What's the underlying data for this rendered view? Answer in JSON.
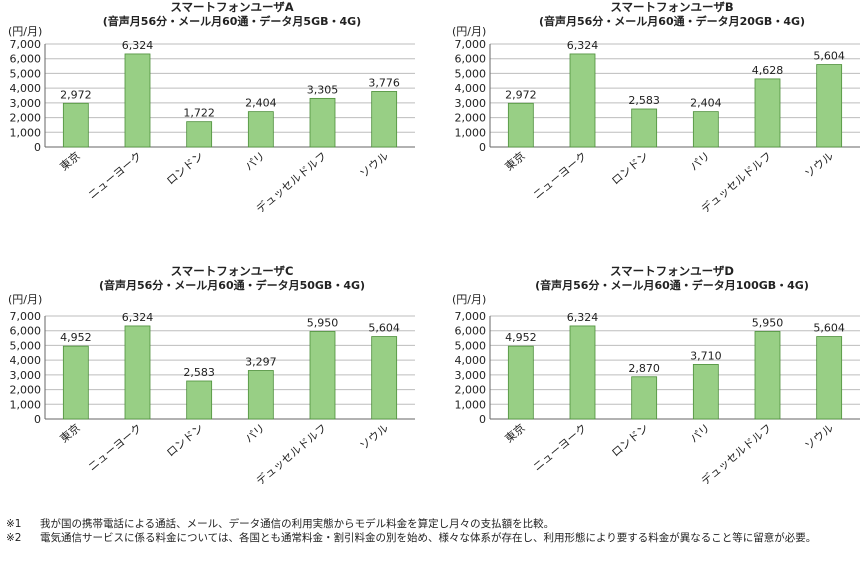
{
  "chart_data": [
    {
      "type": "bar",
      "title": "スマートフォンユーザA",
      "subtitle": "(音声月56分・メール月60通・データ月5GB・4G)",
      "unit_label": "(円/月)",
      "categories": [
        "東京",
        "ニューヨーク",
        "ロンドン",
        "パリ",
        "デュッセルドルフ",
        "ソウル"
      ],
      "values": [
        2972,
        6324,
        1722,
        2404,
        3305,
        3776
      ],
      "value_labels": [
        "2,972",
        "6,324",
        "1,722",
        "2,404",
        "3,305",
        "3,776"
      ],
      "ylim": [
        0,
        7000
      ],
      "yticks": [
        "0",
        "1,000",
        "2,000",
        "3,000",
        "4,000",
        "5,000",
        "6,000",
        "7,000"
      ],
      "grid": true,
      "legend": "none"
    },
    {
      "type": "bar",
      "title": "スマートフォンユーザB",
      "subtitle": "(音声月56分・メール月60通・データ月20GB・4G)",
      "unit_label": "(円/月)",
      "categories": [
        "東京",
        "ニューヨーク",
        "ロンドン",
        "パリ",
        "デュッセルドルフ",
        "ソウル"
      ],
      "values": [
        2972,
        6324,
        2583,
        2404,
        4628,
        5604
      ],
      "value_labels": [
        "2,972",
        "6,324",
        "2,583",
        "2,404",
        "4,628",
        "5,604"
      ],
      "ylim": [
        0,
        7000
      ],
      "yticks": [
        "0",
        "1,000",
        "2,000",
        "3,000",
        "4,000",
        "5,000",
        "6,000",
        "7,000"
      ],
      "grid": true,
      "legend": "none"
    },
    {
      "type": "bar",
      "title": "スマートフォンユーザC",
      "subtitle": "(音声月56分・メール月60通・データ月50GB・4G)",
      "unit_label": "(円/月)",
      "categories": [
        "東京",
        "ニューヨーク",
        "ロンドン",
        "パリ",
        "デュッセルドルフ",
        "ソウル"
      ],
      "values": [
        4952,
        6324,
        2583,
        3297,
        5950,
        5604
      ],
      "value_labels": [
        "4,952",
        "6,324",
        "2,583",
        "3,297",
        "5,950",
        "5,604"
      ],
      "ylim": [
        0,
        7000
      ],
      "yticks": [
        "0",
        "1,000",
        "2,000",
        "3,000",
        "4,000",
        "5,000",
        "6,000",
        "7,000"
      ],
      "grid": true,
      "legend": "none"
    },
    {
      "type": "bar",
      "title": "スマートフォンユーザD",
      "subtitle": "(音声月56分・メール月60通・データ月100GB・4G)",
      "unit_label": "(円/月)",
      "categories": [
        "東京",
        "ニューヨーク",
        "ロンドン",
        "パリ",
        "デュッセルドルフ",
        "ソウル"
      ],
      "values": [
        4952,
        6324,
        2870,
        3710,
        5950,
        5604
      ],
      "value_labels": [
        "4,952",
        "6,324",
        "2,870",
        "3,710",
        "5,950",
        "5,604"
      ],
      "ylim": [
        0,
        7000
      ],
      "yticks": [
        "0",
        "1,000",
        "2,000",
        "3,000",
        "4,000",
        "5,000",
        "6,000",
        "7,000"
      ],
      "grid": true,
      "legend": "none"
    }
  ],
  "colors": {
    "bar_fill": "#98cf85",
    "bar_stroke": "#4d8f3a",
    "grid": "#bdbdbd",
    "axis": "#666666"
  },
  "footnotes": [
    {
      "mark": "※1",
      "text": "我が国の携帯電話による通話、メール、データ通信の利用実態からモデル料金を算定し月々の支払額を比較。"
    },
    {
      "mark": "※2",
      "text": "電気通信サービスに係る料金については、各国とも通常料金・割引料金の別を始め、様々な体系が存在し、利用形態により要する料金が異なること等に留意が必要。"
    }
  ]
}
